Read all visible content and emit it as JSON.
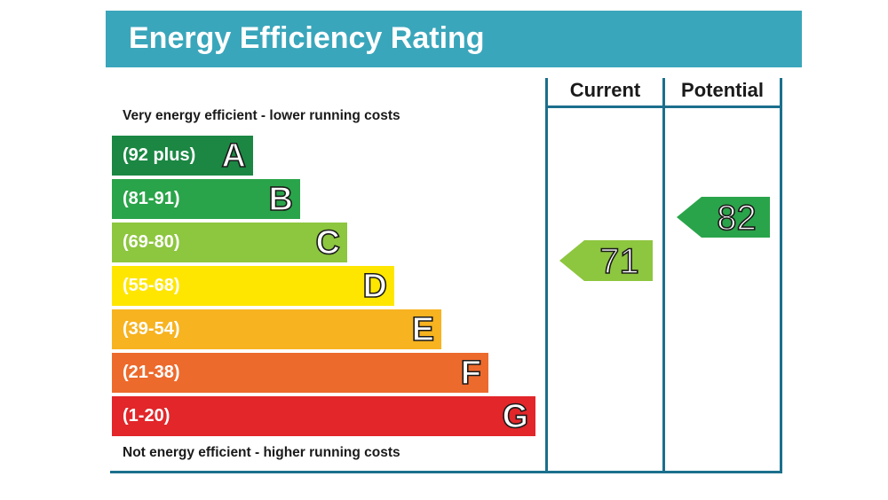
{
  "header": {
    "title": "Energy Efficiency Rating"
  },
  "notes": {
    "top": "Very energy efficient - lower running costs",
    "bottom": "Not energy efficient - higher running costs"
  },
  "columns": {
    "current": "Current",
    "potential": "Potential"
  },
  "chart_data": {
    "type": "bar",
    "categories": [
      "A",
      "B",
      "C",
      "D",
      "E",
      "F",
      "G"
    ],
    "bands": [
      {
        "letter": "A",
        "range": "(92 plus)",
        "color": "#1b8743"
      },
      {
        "letter": "B",
        "range": "(81-91)",
        "color": "#2aa44a"
      },
      {
        "letter": "C",
        "range": "(69-80)",
        "color": "#8dc63f"
      },
      {
        "letter": "D",
        "range": "(55-68)",
        "color": "#ffe600"
      },
      {
        "letter": "E",
        "range": "(39-54)",
        "color": "#f7b320"
      },
      {
        "letter": "F",
        "range": "(21-38)",
        "color": "#ed6a2d"
      },
      {
        "letter": "G",
        "range": "(1-20)",
        "color": "#e2262a"
      }
    ],
    "current": {
      "value": 71,
      "band": "C",
      "color": "#8dc63f"
    },
    "potential": {
      "value": 82,
      "band": "B",
      "color": "#2aa44a"
    }
  }
}
